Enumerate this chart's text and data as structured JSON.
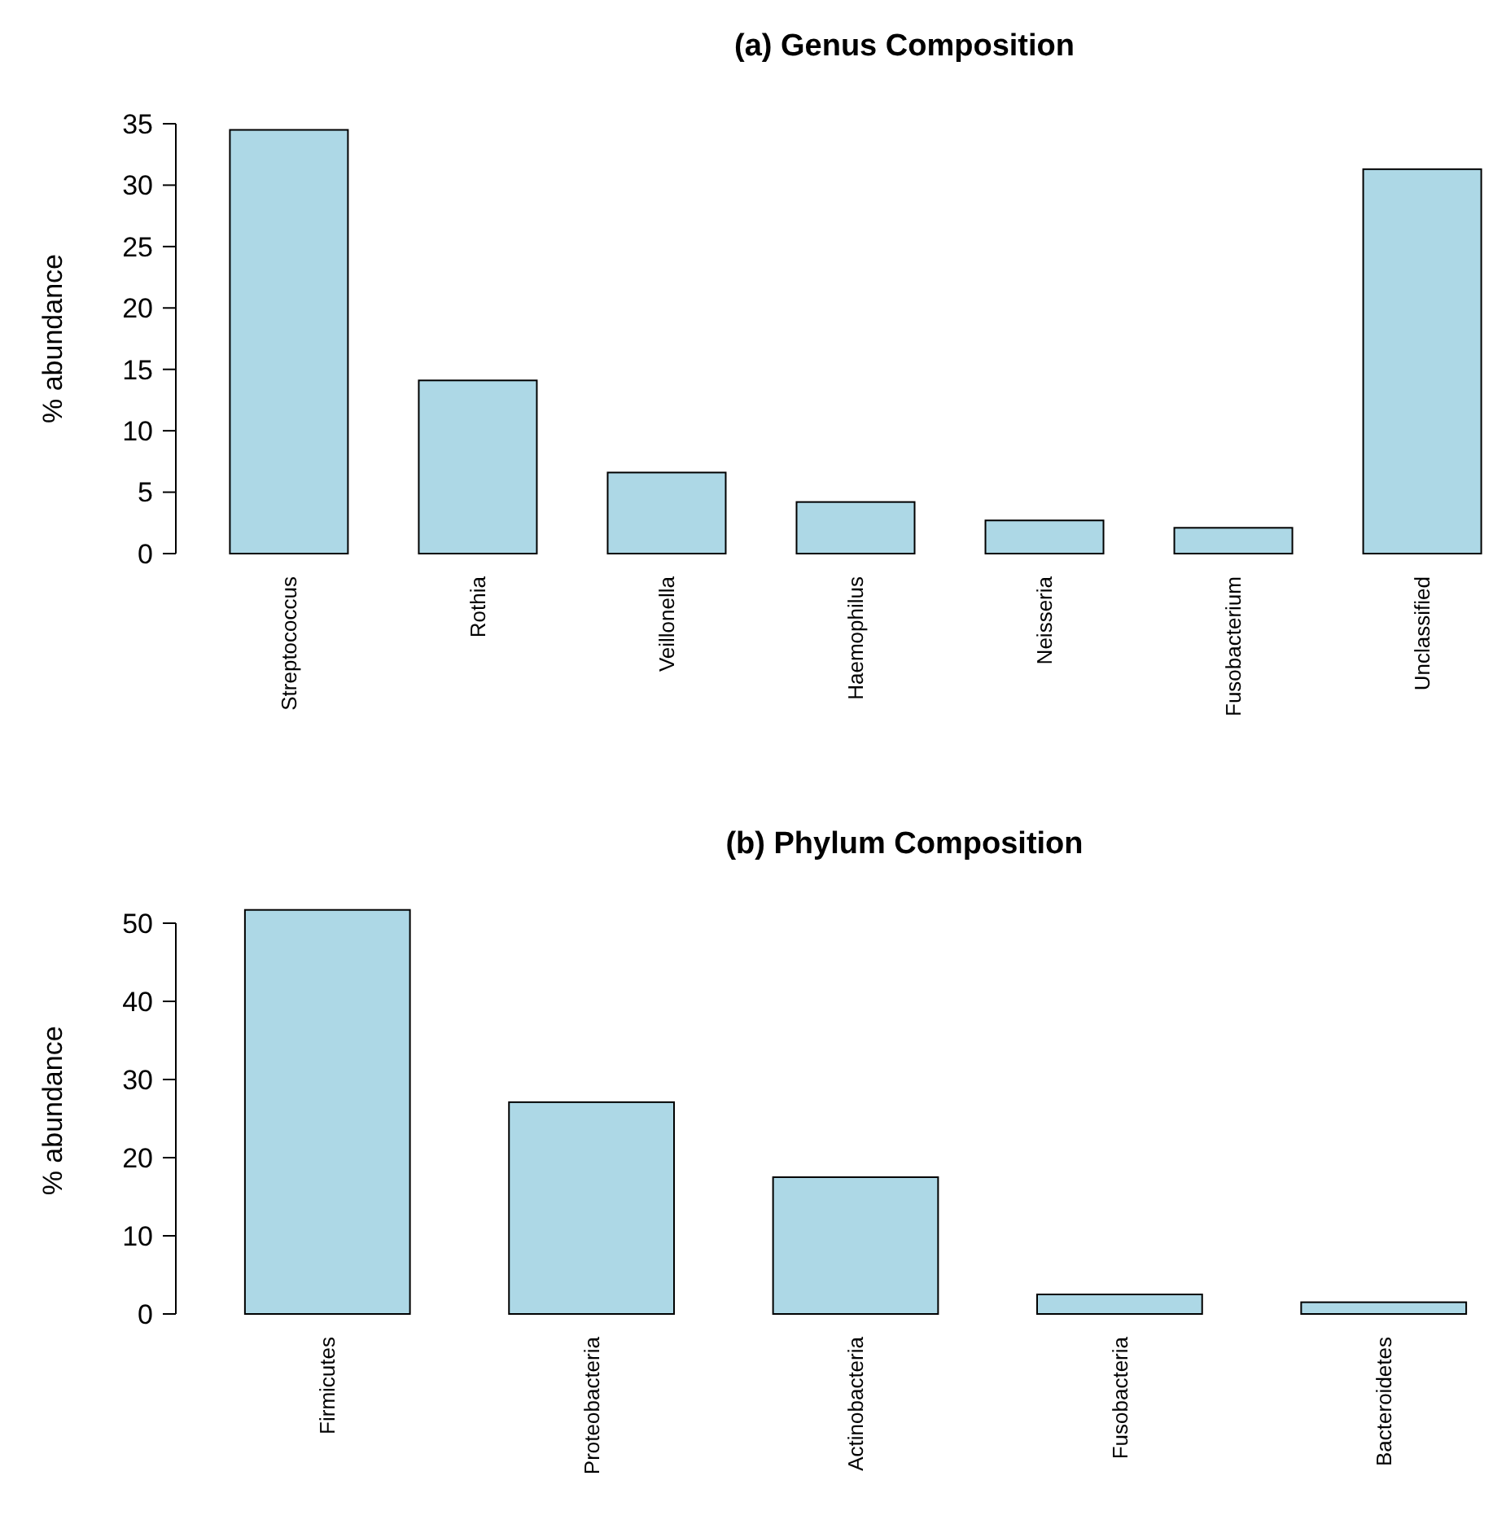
{
  "chart_data": [
    {
      "type": "bar",
      "title": "(a) Genus Composition",
      "ylabel": "% abundance",
      "categories": [
        "Streptococcus",
        "Rothia",
        "Veillonella",
        "Haemophilus",
        "Neisseria",
        "Fusobacterium",
        "Unclassified"
      ],
      "values": [
        34.5,
        14.1,
        6.6,
        4.2,
        2.7,
        2.1,
        31.3
      ],
      "color": "#add8e6",
      "ylim": [
        0,
        35
      ],
      "yticks": [
        0,
        5,
        10,
        15,
        20,
        25,
        30,
        35
      ],
      "grid": false
    },
    {
      "type": "bar",
      "title": "(b) Phylum Composition",
      "ylabel": "% abundance",
      "categories": [
        "Firmicutes",
        "Proteobacteria",
        "Actinobacteria",
        "Fusobacteria",
        "Bacteroidetes"
      ],
      "values": [
        51.7,
        27.1,
        17.5,
        2.5,
        1.5
      ],
      "color": "#add8e6",
      "ylim": [
        0,
        52
      ],
      "yticks": [
        0,
        10,
        20,
        30,
        40,
        50
      ],
      "grid": false
    }
  ]
}
